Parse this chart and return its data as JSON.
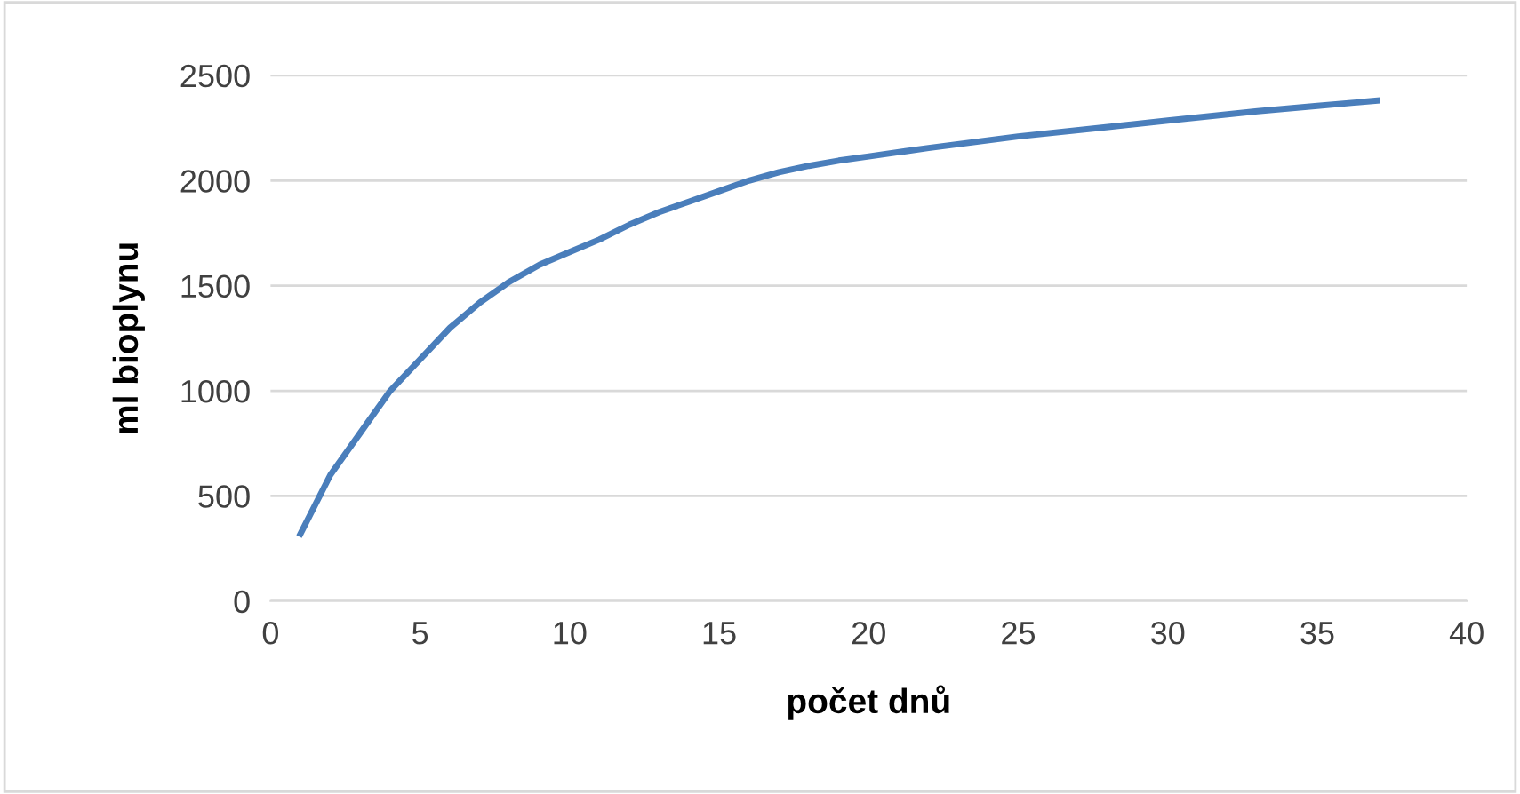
{
  "chart_data": {
    "type": "line",
    "xlabel": "počet dnů",
    "ylabel": "ml bioplynu",
    "x": [
      1,
      2,
      3,
      4,
      5,
      6,
      7,
      8,
      9,
      10,
      11,
      12,
      13,
      14,
      15,
      16,
      17,
      18,
      19,
      20,
      22,
      25,
      28,
      30,
      33,
      35,
      37
    ],
    "series": [
      {
        "color": "#4a7ebb",
        "values": [
          320,
          600,
          800,
          1000,
          1150,
          1300,
          1420,
          1520,
          1600,
          1660,
          1720,
          1790,
          1850,
          1900,
          1950,
          2000,
          2040,
          2070,
          2095,
          2115,
          2155,
          2210,
          2255,
          2285,
          2330,
          2355,
          2380
        ]
      }
    ],
    "xlim": [
      0,
      40
    ],
    "xticks": [
      0,
      5,
      10,
      15,
      20,
      25,
      30,
      35,
      40
    ],
    "ylim": [
      0,
      2500
    ],
    "yticks": [
      0,
      500,
      1000,
      1500,
      2000,
      2500
    ],
    "grid": "y",
    "marker": "none",
    "line_style": "solid",
    "legend": false
  }
}
